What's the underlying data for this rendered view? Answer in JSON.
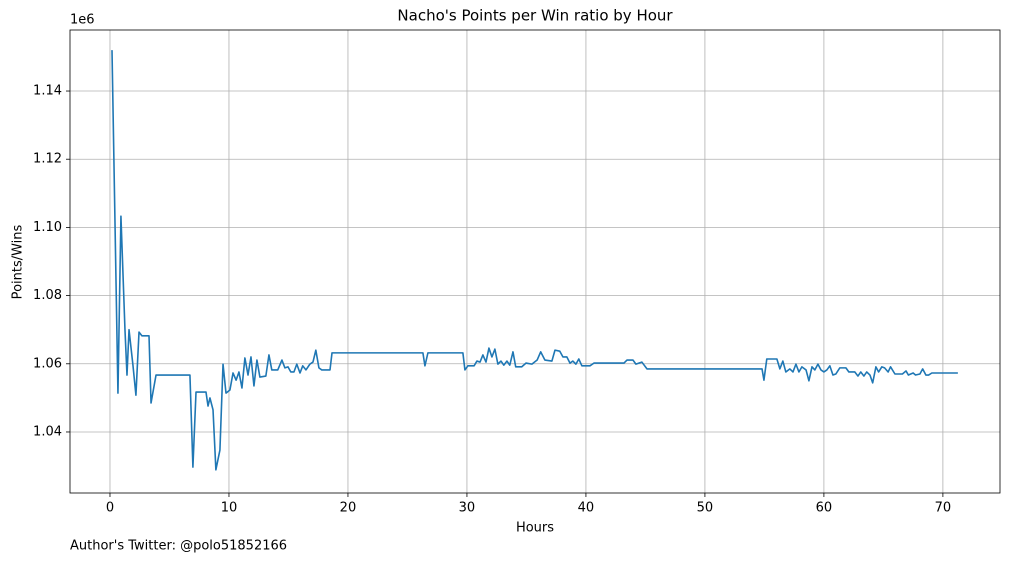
{
  "chart_data": {
    "type": "line",
    "title": "Nacho's Points per Win ratio by Hour",
    "xlabel": "Hours",
    "ylabel": "Points/Wins",
    "y_offset_label": "1e6",
    "footnote": "Author's Twitter: @polo51852166",
    "x": [
      0.17,
      0.67,
      0.92,
      1.26,
      1.43,
      1.6,
      1.93,
      2.18,
      2.44,
      2.69,
      3.28,
      3.45,
      3.87,
      6.72,
      6.97,
      7.23,
      8.07,
      8.24,
      8.4,
      8.66,
      8.9,
      9.24,
      9.5,
      9.75,
      10.08,
      10.34,
      10.6,
      10.84,
      11.09,
      11.34,
      11.6,
      11.85,
      12.1,
      12.35,
      12.6,
      13.1,
      13.36,
      13.6,
      14.1,
      14.45,
      14.7,
      14.96,
      15.2,
      15.46,
      15.7,
      15.97,
      16.2,
      16.47,
      16.8,
      17.06,
      17.3,
      17.56,
      17.8,
      18.49,
      18.66,
      26.3,
      26.47,
      26.72,
      29.66,
      29.83,
      30.08,
      30.6,
      30.84,
      31.1,
      31.34,
      31.6,
      31.85,
      32.1,
      32.35,
      32.6,
      32.86,
      33.1,
      33.36,
      33.6,
      33.87,
      34.1,
      34.6,
      34.96,
      35.46,
      35.9,
      36.2,
      36.55,
      37.14,
      37.4,
      37.8,
      38.07,
      38.4,
      38.66,
      38.9,
      39.16,
      39.4,
      39.66,
      40.34,
      40.67,
      43.2,
      43.45,
      43.95,
      44.2,
      44.7,
      45.13,
      54.8,
      54.96,
      55.2,
      56.05,
      56.3,
      56.55,
      56.8,
      57.14,
      57.4,
      57.65,
      57.9,
      58.15,
      58.5,
      58.74,
      59.0,
      59.24,
      59.5,
      59.75,
      60.0,
      60.25,
      60.5,
      60.76,
      61.0,
      61.34,
      61.85,
      62.1,
      62.6,
      62.86,
      63.1,
      63.36,
      63.6,
      63.87,
      64.1,
      64.37,
      64.6,
      64.87,
      65.1,
      65.4,
      65.6,
      65.97,
      66.6,
      66.9,
      67.1,
      67.5,
      67.7,
      68.07,
      68.3,
      68.57,
      68.8,
      69.07,
      71.26
    ],
    "series": [
      {
        "color": "#1f77b4",
        "values": [
          1.152,
          1.0514,
          1.1033,
          1.07,
          1.0567,
          1.07,
          1.0596,
          1.0508,
          1.0693,
          1.0682,
          1.0682,
          1.0485,
          1.0567,
          1.0567,
          1.0297,
          1.0517,
          1.0517,
          1.0476,
          1.05,
          1.0465,
          1.0289,
          1.0347,
          1.0599,
          1.0514,
          1.0523,
          1.0573,
          1.0552,
          1.0576,
          1.0529,
          1.0617,
          1.0567,
          1.062,
          1.0535,
          1.0611,
          1.0561,
          1.0564,
          1.0626,
          1.0582,
          1.0582,
          1.0611,
          1.0588,
          1.0591,
          1.0576,
          1.0576,
          1.0599,
          1.0573,
          1.0594,
          1.0582,
          1.0599,
          1.0605,
          1.064,
          1.0588,
          1.0582,
          1.0582,
          1.0632,
          1.0632,
          1.0594,
          1.0632,
          1.0632,
          1.0582,
          1.0594,
          1.0594,
          1.0608,
          1.0605,
          1.0626,
          1.0605,
          1.0646,
          1.062,
          1.0643,
          1.0599,
          1.0608,
          1.0596,
          1.0608,
          1.0596,
          1.0635,
          1.0591,
          1.0591,
          1.0602,
          1.0599,
          1.0611,
          1.0635,
          1.0611,
          1.0608,
          1.064,
          1.0637,
          1.062,
          1.062,
          1.0602,
          1.0608,
          1.0599,
          1.0614,
          1.0594,
          1.0594,
          1.0602,
          1.0602,
          1.0611,
          1.0611,
          1.0599,
          1.0605,
          1.0585,
          1.0585,
          1.0552,
          1.0614,
          1.0614,
          1.0585,
          1.0608,
          1.0576,
          1.0585,
          1.0576,
          1.0599,
          1.0576,
          1.0591,
          1.0582,
          1.055,
          1.0591,
          1.0582,
          1.0599,
          1.0582,
          1.0576,
          1.0582,
          1.0594,
          1.0567,
          1.057,
          1.0588,
          1.0588,
          1.0576,
          1.0576,
          1.0564,
          1.0576,
          1.0564,
          1.0576,
          1.0567,
          1.0544,
          1.0591,
          1.0576,
          1.0591,
          1.0588,
          1.0576,
          1.0591,
          1.057,
          1.057,
          1.0579,
          1.0567,
          1.0573,
          1.0567,
          1.057,
          1.0585,
          1.0567,
          1.0567,
          1.0573,
          1.0573
        ]
      }
    ],
    "xlim": [
      -3.36,
      74.8
    ],
    "ylim": [
      1.0221,
      1.1579
    ],
    "xticks": [
      0,
      10,
      20,
      30,
      40,
      50,
      60,
      70
    ],
    "yticks": [
      {
        "value": 1.04,
        "label": "1.04"
      },
      {
        "value": 1.06,
        "label": "1.06"
      },
      {
        "value": 1.08,
        "label": "1.08"
      },
      {
        "value": 1.1,
        "label": "1.10"
      },
      {
        "value": 1.12,
        "label": "1.12"
      },
      {
        "value": 1.14,
        "label": "1.14"
      }
    ],
    "grid": true
  }
}
